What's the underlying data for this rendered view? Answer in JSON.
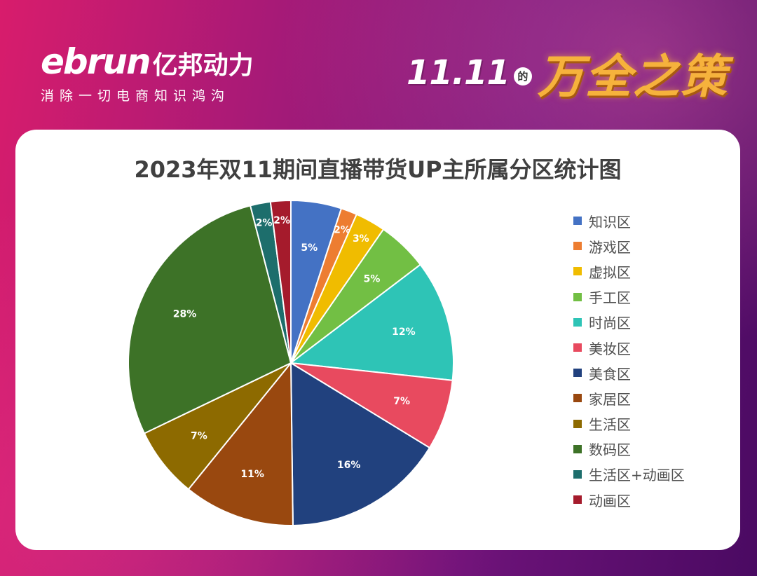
{
  "header": {
    "brand_name": "ebrun",
    "brand_cn": "亿邦动力",
    "brand_tagline": "消除一切电商知识鸿沟",
    "campaign_date": "11.11",
    "campaign_de": "的",
    "campaign_slogan": "万全之策"
  },
  "chart_data": {
    "type": "pie",
    "title": "2023年双11期间直播带货UP主所属分区统计图",
    "legend_position": "right",
    "slices": [
      {
        "label": "知识区",
        "value": 5,
        "display": "5%",
        "color": "#4472c4"
      },
      {
        "label": "游戏区",
        "value": 1.6,
        "display": "2%",
        "color": "#ed7d31"
      },
      {
        "label": "虚拟区",
        "value": 3,
        "display": "3%",
        "color": "#f0bc00"
      },
      {
        "label": "手工区",
        "value": 5,
        "display": "5%",
        "color": "#72bf44"
      },
      {
        "label": "时尚区",
        "value": 12,
        "display": "12%",
        "color": "#2ec4b6"
      },
      {
        "label": "美妆区",
        "value": 7,
        "display": "7%",
        "color": "#e84a5f"
      },
      {
        "label": "美食区",
        "value": 16,
        "display": "16%",
        "color": "#21417e"
      },
      {
        "label": "家居区",
        "value": 11,
        "display": "11%",
        "color": "#99480f"
      },
      {
        "label": "生活区",
        "value": 7,
        "display": "7%",
        "color": "#8d6a00"
      },
      {
        "label": "数码区",
        "value": 28,
        "display": "28%",
        "color": "#3d7227"
      },
      {
        "label": "生活区+动画区",
        "value": 2,
        "display": "2%",
        "color": "#1d6e6c"
      },
      {
        "label": "动画区",
        "value": 2,
        "display": "2%",
        "color": "#a51b2c"
      }
    ]
  }
}
